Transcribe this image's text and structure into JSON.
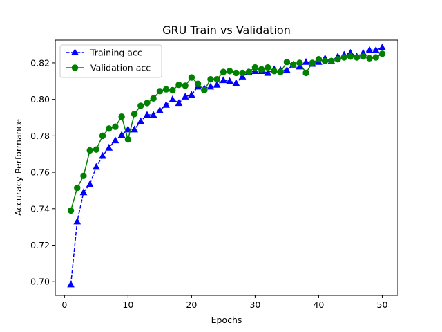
{
  "chart_data": {
    "type": "line",
    "title": "GRU Train vs Validation",
    "xlabel": "Epochs",
    "ylabel": "Accuracy Performance",
    "xlim": [
      -1.45,
      52.45
    ],
    "ylim": [
      0.6925,
      0.8325
    ],
    "xticks": [
      0,
      10,
      20,
      30,
      40,
      50
    ],
    "yticks": [
      0.7,
      0.72,
      0.74,
      0.76,
      0.78,
      0.8,
      0.82
    ],
    "ytick_labels": [
      "0.70",
      "0.72",
      "0.74",
      "0.76",
      "0.78",
      "0.80",
      "0.82"
    ],
    "grid": false,
    "legend_position": "upper-left",
    "x": [
      1,
      2,
      3,
      4,
      5,
      6,
      7,
      8,
      9,
      10,
      11,
      12,
      13,
      14,
      15,
      16,
      17,
      18,
      19,
      20,
      21,
      22,
      23,
      24,
      25,
      26,
      27,
      28,
      29,
      30,
      31,
      32,
      33,
      34,
      35,
      36,
      37,
      38,
      39,
      40,
      41,
      42,
      43,
      44,
      45,
      46,
      47,
      48,
      49,
      50
    ],
    "series": [
      {
        "name": "Training acc",
        "color": "#0000ff",
        "line_style": "dashed",
        "marker": "triangle",
        "values": [
          0.6985,
          0.733,
          0.749,
          0.7535,
          0.763,
          0.769,
          0.7735,
          0.7775,
          0.7805,
          0.7835,
          0.7835,
          0.788,
          0.7915,
          0.7915,
          0.794,
          0.797,
          0.8,
          0.798,
          0.8015,
          0.8025,
          0.807,
          0.806,
          0.807,
          0.808,
          0.8105,
          0.81,
          0.809,
          0.8125,
          0.815,
          0.8155,
          0.8155,
          0.8145,
          0.8165,
          0.816,
          0.816,
          0.819,
          0.818,
          0.8205,
          0.8195,
          0.8205,
          0.8225,
          0.821,
          0.8235,
          0.8245,
          0.8255,
          0.8235,
          0.8255,
          0.827,
          0.827,
          0.8285
        ]
      },
      {
        "name": "Validation acc",
        "color": "#008000",
        "line_style": "solid",
        "marker": "circle",
        "values": [
          0.739,
          0.7515,
          0.758,
          0.772,
          0.7725,
          0.78,
          0.784,
          0.785,
          0.7905,
          0.778,
          0.792,
          0.7965,
          0.798,
          0.8005,
          0.8045,
          0.8055,
          0.805,
          0.808,
          0.8075,
          0.812,
          0.8085,
          0.805,
          0.811,
          0.811,
          0.815,
          0.8155,
          0.8145,
          0.8145,
          0.815,
          0.8175,
          0.8165,
          0.8175,
          0.8155,
          0.815,
          0.8205,
          0.819,
          0.82,
          0.8145,
          0.82,
          0.822,
          0.821,
          0.821,
          0.822,
          0.823,
          0.8235,
          0.823,
          0.8235,
          0.8225,
          0.823,
          0.825
        ]
      }
    ]
  }
}
